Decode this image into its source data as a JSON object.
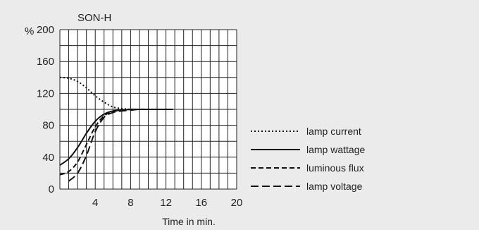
{
  "chart_data": {
    "type": "line",
    "title": "SON-H",
    "ylabel": "%",
    "xlabel": "Time in min.",
    "xlim": [
      0,
      20
    ],
    "ylim": [
      0,
      200
    ],
    "xticks": [
      4,
      8,
      12,
      16,
      20
    ],
    "yticks": [
      0,
      40,
      80,
      120,
      160,
      200
    ],
    "grid": true,
    "legend_position": "right",
    "series": [
      {
        "name": "lamp current",
        "style": "dotted",
        "x": [
          0,
          1,
          2,
          3,
          4,
          5,
          6,
          7,
          8,
          9,
          10,
          11,
          12,
          12.8
        ],
        "y": [
          140,
          139,
          135,
          127,
          117,
          109,
          103,
          101,
          100,
          100,
          100,
          100,
          100,
          100
        ]
      },
      {
        "name": "lamp wattage",
        "style": "solid",
        "x": [
          0,
          1,
          2,
          3,
          4,
          5,
          6,
          7,
          8,
          9,
          10,
          11,
          12,
          12.8
        ],
        "y": [
          30,
          38,
          52,
          70,
          85,
          94,
          98,
          99,
          100,
          100,
          100,
          100,
          100,
          100
        ]
      },
      {
        "name": "luminous flux",
        "style": "dashed",
        "x": [
          0,
          1,
          2,
          3,
          4,
          5,
          6,
          7,
          8,
          9,
          10,
          11,
          12,
          12.8
        ],
        "y": [
          18,
          22,
          34,
          56,
          78,
          92,
          97,
          99,
          100,
          100,
          100,
          100,
          100,
          100
        ]
      },
      {
        "name": "lamp voltage",
        "style": "longdash",
        "x": [
          1,
          2,
          3,
          4,
          5,
          6,
          7,
          8,
          9,
          10,
          11,
          12,
          12.8
        ],
        "y": [
          10,
          20,
          42,
          72,
          90,
          96,
          98,
          99,
          100,
          100,
          100,
          100,
          100
        ]
      }
    ]
  }
}
